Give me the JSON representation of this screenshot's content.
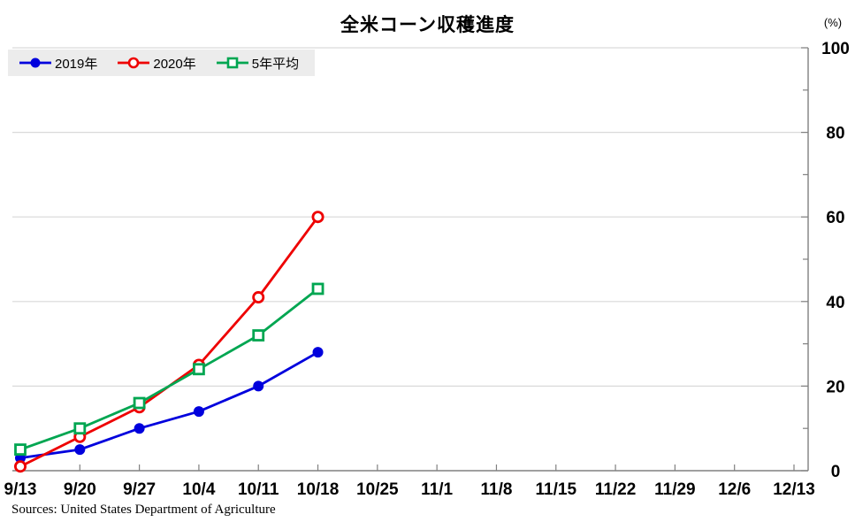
{
  "title": "全米コーン収穫進度",
  "unit_label": "(%)",
  "source": "Sources: United States Department of Agriculture",
  "colors": {
    "grid": "#d9d9d9",
    "axis": "#808080",
    "legend_background": "#ececec",
    "series_2019": "#0000dd",
    "series_2020": "#ee0000",
    "series_5yr_avg": "#00a651"
  },
  "chart_data": {
    "type": "line",
    "title": "全米コーン収穫進度",
    "ylabel": "(%)",
    "xlabel": "",
    "ylim": [
      0,
      100
    ],
    "y_major_step": 20,
    "y_minor_step": 10,
    "grid": "horizontal",
    "y_axis_side": "right",
    "legend_position": "top-left",
    "categories": [
      "9/13",
      "9/20",
      "9/27",
      "10/4",
      "10/11",
      "10/18",
      "10/25",
      "11/1",
      "11/8",
      "11/15",
      "11/22",
      "11/29",
      "12/6",
      "12/13"
    ],
    "series": [
      {
        "name": "2019年",
        "color": "#0000dd",
        "marker": "filled-circle",
        "values": [
          3,
          5,
          10,
          14,
          20,
          28
        ]
      },
      {
        "name": "2020年",
        "color": "#ee0000",
        "marker": "open-circle",
        "values": [
          1,
          8,
          15,
          25,
          41,
          60
        ]
      },
      {
        "name": "5年平均",
        "color": "#00a651",
        "marker": "open-square",
        "values": [
          5,
          10,
          16,
          24,
          32,
          43
        ]
      }
    ]
  }
}
